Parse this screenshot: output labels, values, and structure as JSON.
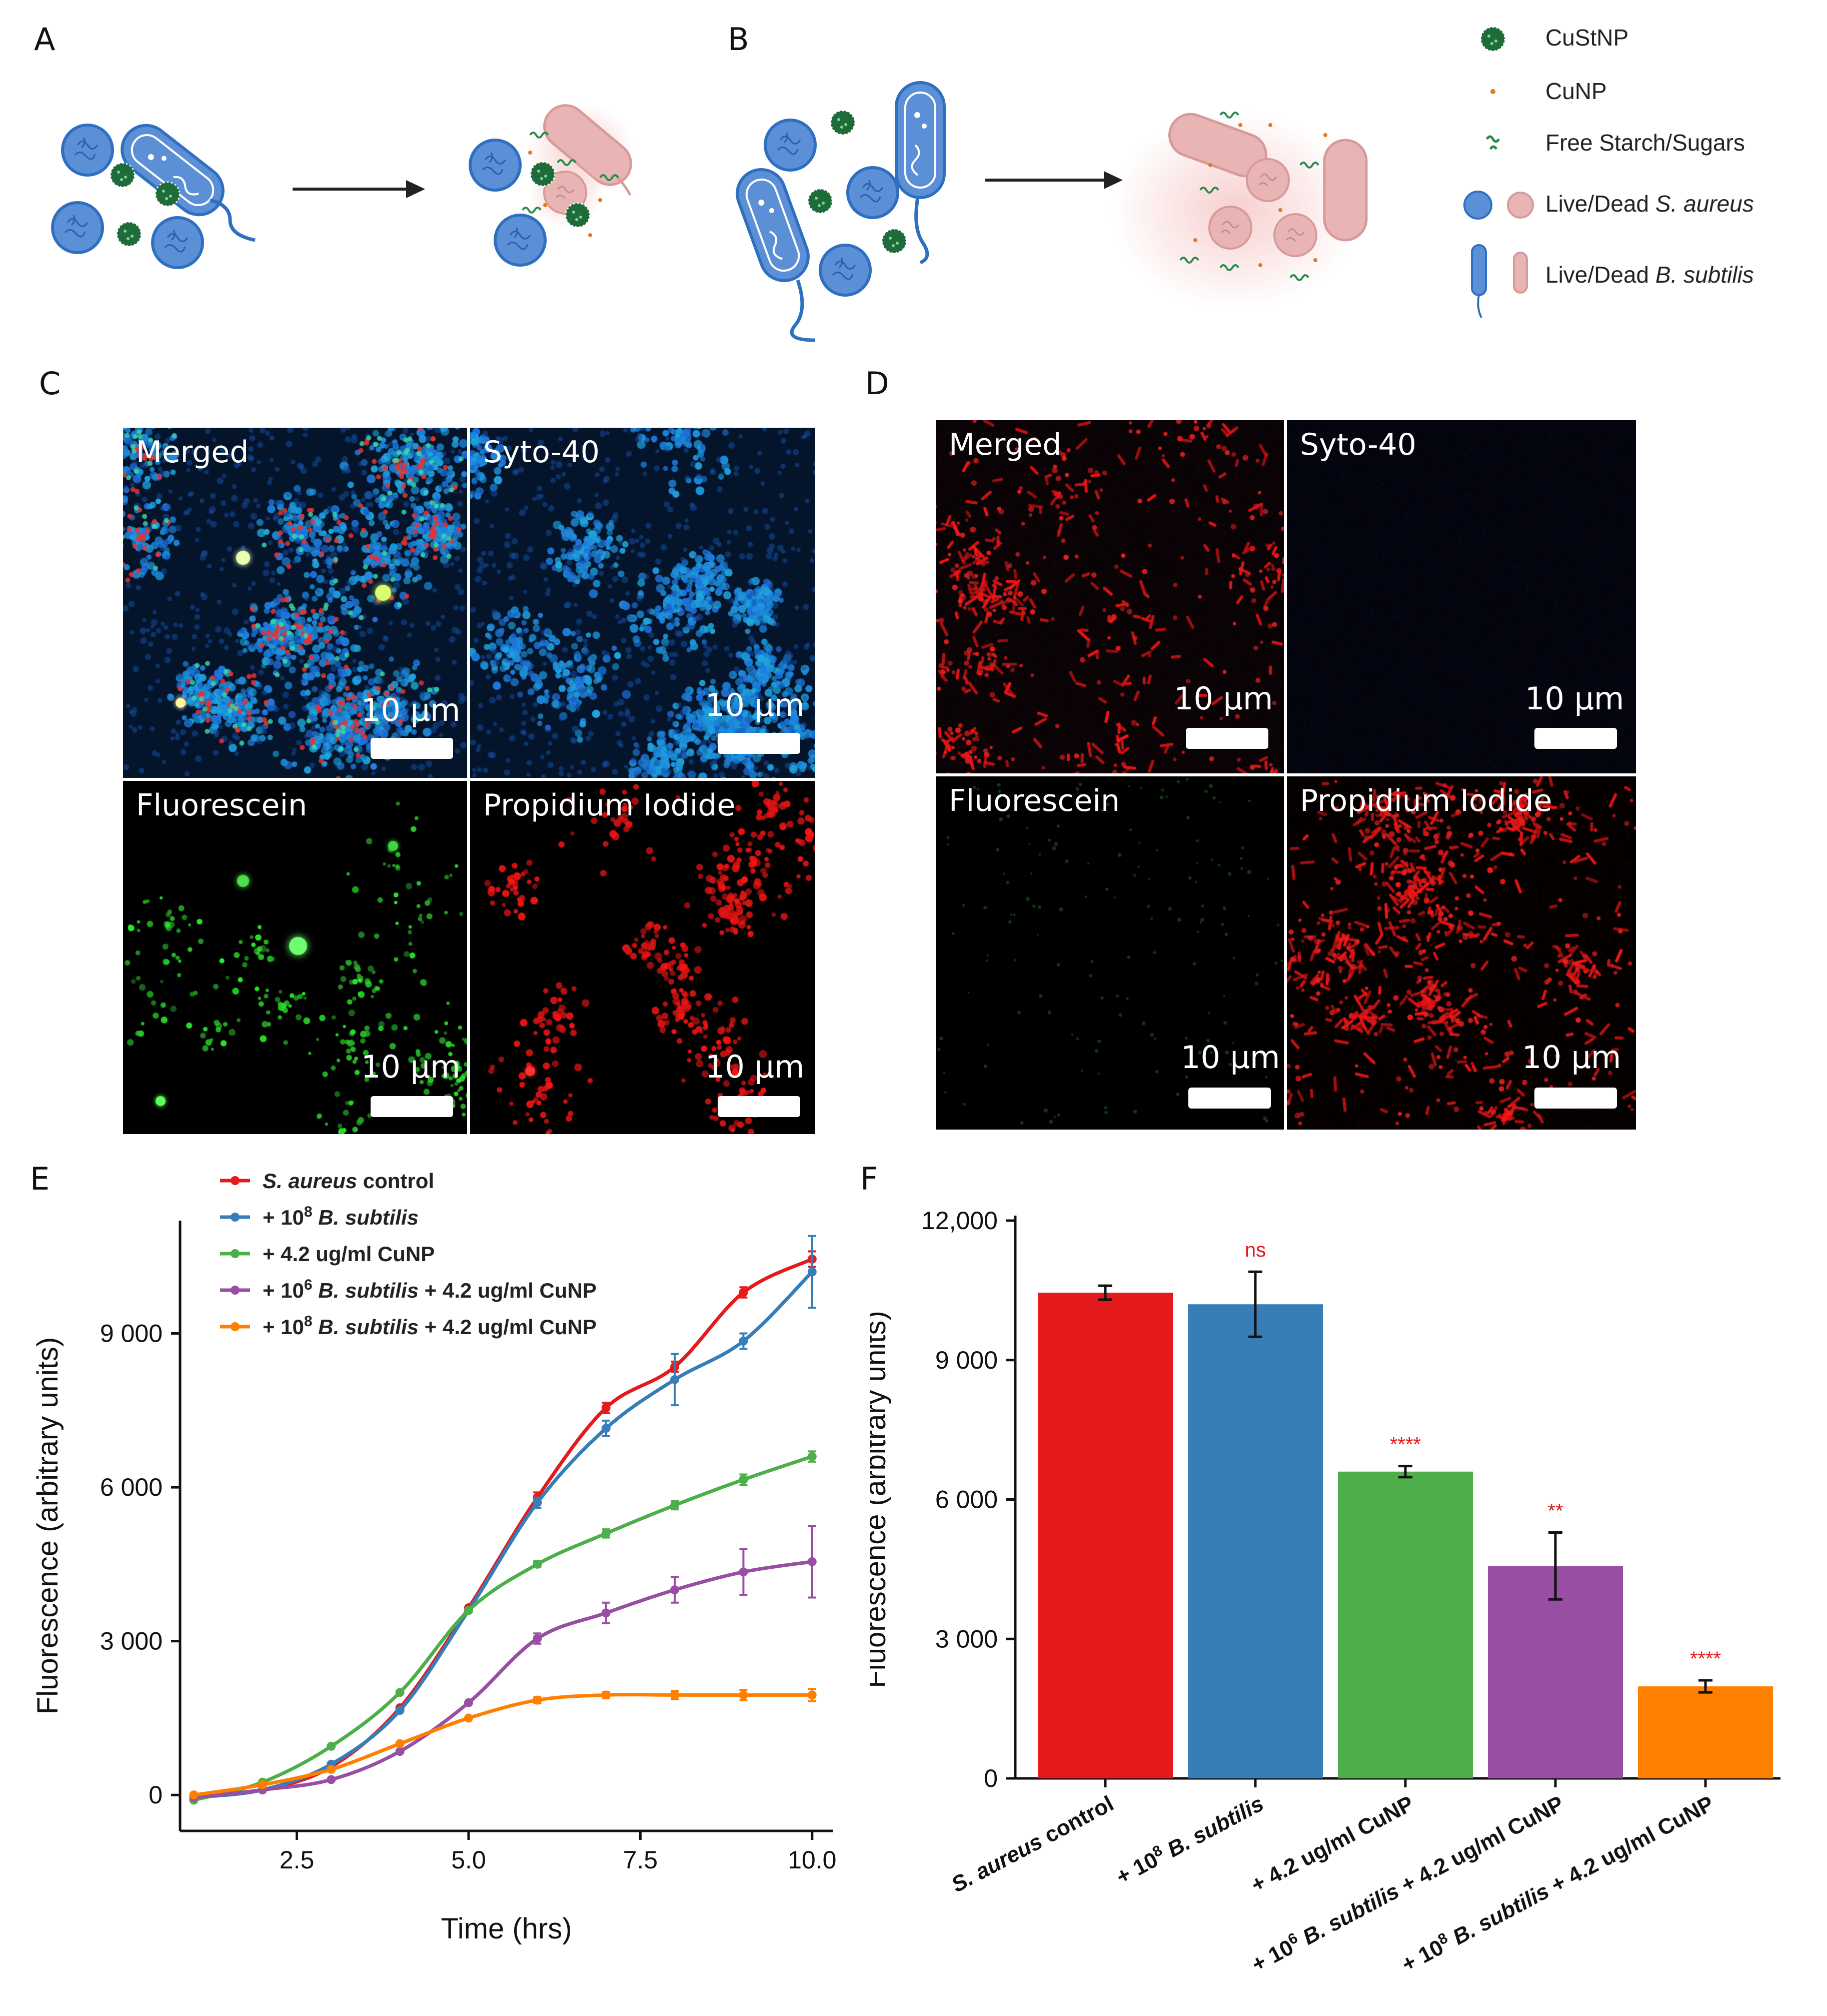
{
  "panel_labels": {
    "a": "A",
    "b": "B",
    "c": "C",
    "d": "D",
    "e": "E",
    "f": "F"
  },
  "schematic_legend": [
    {
      "label": "CuStNP",
      "icon": "custnp-icon"
    },
    {
      "label": "CuNP",
      "icon": "cunp-dot-icon"
    },
    {
      "label": "Free Starch/Sugars",
      "icon": "starch-squiggle-icon"
    },
    {
      "label_plain": "Live/Dead ",
      "label_italic": "S. aureus",
      "icon": "s-aureus-cells-icon"
    },
    {
      "label_plain": "Live/Dead ",
      "label_italic": "B. subtilis",
      "icon": "b-subtilis-cells-icon"
    }
  ],
  "colors": {
    "live": "#5b8fd6",
    "live_stroke": "#2f6fc0",
    "dead": "#e8b4b4",
    "dead_glow": "#f2c6c6",
    "custnp": "#1f6b3a",
    "cunp": "#e07a20",
    "starch": "#2a8a4a",
    "arrow": "#222222"
  },
  "micro_c": [
    {
      "label": "Merged",
      "scale": "10 µm",
      "style": "merged"
    },
    {
      "label": "Syto-40",
      "scale": "10 µm",
      "style": "syto"
    },
    {
      "label": "Fluorescein",
      "scale": "10 µm",
      "style": "fluorescein"
    },
    {
      "label": "Propidium Iodide",
      "scale": "10 µm",
      "style": "pi"
    }
  ],
  "micro_d": [
    {
      "label": "Merged",
      "scale": "10 µm",
      "style": "merged-red"
    },
    {
      "label": "Syto-40",
      "scale": "10 µm",
      "style": "dark-blue"
    },
    {
      "label": "Fluorescein",
      "scale": "10 µm",
      "style": "dark"
    },
    {
      "label": "Propidium Iodide",
      "scale": "10 µm",
      "style": "pi-dense"
    }
  ],
  "chart_data": [
    {
      "type": "line",
      "panel": "E",
      "xlabel": "Time (hrs)",
      "ylabel": "Fluorescence (arbitrary units)",
      "xlim": [
        0.8,
        10.3
      ],
      "ylim": [
        -700,
        11200
      ],
      "xticks": [
        2.5,
        5.0,
        7.5,
        10.0
      ],
      "xtick_labels": [
        "2.5",
        "5.0",
        "7.5",
        "10.0"
      ],
      "yticks": [
        0,
        3000,
        6000,
        9000
      ],
      "ytick_labels": [
        "0",
        "3 000",
        "6 000",
        "9 000"
      ],
      "x": [
        1,
        2,
        3,
        4,
        5,
        6,
        7,
        8,
        9,
        10
      ],
      "series": [
        {
          "name_italic": "S. aureus",
          "name_plain": " control",
          "color": "#e41a1c",
          "values": [
            0,
            100,
            550,
            1700,
            3650,
            5800,
            7550,
            8350,
            9800,
            10450
          ],
          "errors": [
            0,
            0,
            0,
            0,
            0,
            100,
            100,
            100,
            100,
            150
          ]
        },
        {
          "name_plain": "+ 10",
          "sup": "8",
          "name_italic": " B. subtilis",
          "color": "#377eb8",
          "values": [
            -50,
            100,
            600,
            1650,
            3600,
            5700,
            7150,
            8100,
            8850,
            10200
          ],
          "errors": [
            0,
            0,
            0,
            0,
            0,
            100,
            150,
            500,
            150,
            700
          ]
        },
        {
          "name_plain": "+ 4.2 ug/ml CuNP",
          "color": "#4daf4a",
          "values": [
            -100,
            250,
            950,
            2000,
            3600,
            4500,
            5100,
            5650,
            6150,
            6600
          ],
          "errors": [
            0,
            0,
            0,
            0,
            0,
            60,
            80,
            80,
            100,
            100
          ]
        },
        {
          "name_plain": "+ 10",
          "sup": "6",
          "name_italic": " B. subtilis",
          "name_tail": " + 4.2 ug/ml CuNP",
          "color": "#984ea3",
          "values": [
            -50,
            100,
            300,
            850,
            1800,
            3050,
            3550,
            4000,
            4350,
            4550
          ],
          "errors": [
            0,
            0,
            0,
            0,
            0,
            100,
            200,
            250,
            450,
            700
          ]
        },
        {
          "name_plain": "+ 10",
          "sup": "8",
          "name_italic": " B. subtilis",
          "name_tail": " + 4.2 ug/ml CuNP",
          "color": "#ff7f00",
          "values": [
            0,
            200,
            500,
            1000,
            1500,
            1850,
            1950,
            1950,
            1950,
            1950
          ],
          "errors": [
            0,
            0,
            0,
            0,
            0,
            60,
            60,
            80,
            100,
            120
          ]
        }
      ]
    },
    {
      "type": "bar",
      "panel": "F",
      "ylabel": "Fluorescence (arbitrary units)",
      "ylim": [
        0,
        12000
      ],
      "yticks": [
        0,
        3000,
        6000,
        9000,
        12000
      ],
      "ytick_labels": [
        "0",
        "3 000",
        "6 000",
        "9 000",
        "12,000"
      ],
      "categories": [
        {
          "parts": [
            {
              "t": "S. aureus",
              "i": true
            },
            {
              "t": " control",
              "i": false
            }
          ]
        },
        {
          "parts": [
            {
              "t": "+ 10",
              "i": false
            },
            {
              "t": "8",
              "sup": true
            },
            {
              "t": " B. subtilis",
              "i": true
            }
          ]
        },
        {
          "parts": [
            {
              "t": "+ 4.2 ug/ml CuNP",
              "i": false
            }
          ]
        },
        {
          "parts": [
            {
              "t": "+ 10",
              "i": false
            },
            {
              "t": "6",
              "sup": true
            },
            {
              "t": " B. subtilis",
              "i": true
            },
            {
              "t": " + 4.2 ug/ml CuNP",
              "i": false
            }
          ]
        },
        {
          "parts": [
            {
              "t": "+ 10",
              "i": false
            },
            {
              "t": "8",
              "sup": true
            },
            {
              "t": " B. subtilis",
              "i": true
            },
            {
              "t": " + 4.2 ug/ml CuNP",
              "i": false
            }
          ]
        }
      ],
      "values": [
        10450,
        10200,
        6600,
        4570,
        1980
      ],
      "errors": [
        150,
        700,
        120,
        720,
        130
      ],
      "colors": [
        "#e41a1c",
        "#377eb8",
        "#4daf4a",
        "#984ea3",
        "#ff7f00"
      ],
      "significance": [
        "",
        "ns",
        "****",
        "**",
        "****"
      ]
    }
  ]
}
